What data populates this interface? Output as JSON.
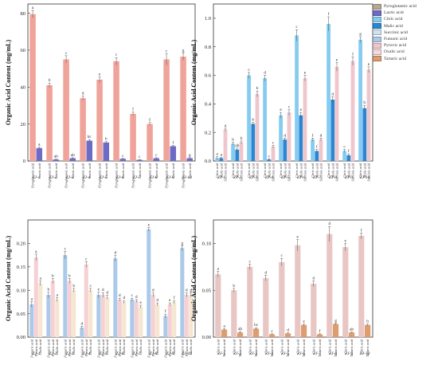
{
  "legend": [
    {
      "name": "Pyroglutamic acid",
      "color": "#b7a993"
    },
    {
      "name": "Lactic acid",
      "color": "#6d6bc6"
    },
    {
      "name": "Citric acid",
      "color": "#85ccf0"
    },
    {
      "name": "Malic acid",
      "color": "#2a86d2"
    },
    {
      "name": "Succinic acid",
      "color": "#cfe3ee"
    },
    {
      "name": "Fumaric acid",
      "color": "#abc9e8"
    },
    {
      "name": "Pyruvic acid",
      "color": "#efc6cc"
    },
    {
      "name": "Oxalic acid",
      "color": "#f6d8de"
    },
    {
      "name": "Tartaric acid",
      "color": "#dd9d6e"
    }
  ],
  "chart_data": [
    {
      "type": "bar",
      "ylabel": "Organic Acid Content (mg/mL)",
      "ylim": [
        0,
        85
      ],
      "yticks": [
        0,
        20,
        40,
        60,
        80
      ],
      "groups": [
        "ZJ-1",
        "ZJ-2",
        "ZJ-3",
        "ZJ-4",
        "ZJ-5",
        "ZJ-6",
        "ZJ-7",
        "ZJ-8",
        "ZJ-9",
        "ZJ-10"
      ],
      "bar_labels": [
        "Pyroglutamic acid",
        "Lactic acid"
      ],
      "series": [
        {
          "name": "Pyroglutamic acid",
          "color": "#f0a39a",
          "values": [
            79.5,
            41,
            55,
            34,
            44,
            54,
            25.5,
            20,
            55,
            56.5
          ],
          "errors": [
            2,
            1.2,
            2,
            1.2,
            1.5,
            2,
            1,
            0.8,
            3,
            2
          ],
          "letters": [
            "a",
            "b",
            "c",
            "d",
            "e",
            "c",
            "f",
            "f",
            "c",
            "g"
          ]
        },
        {
          "name": "Lactic acid",
          "color": "#6d6bc6",
          "values": [
            7,
            0.8,
            1.5,
            11,
            10,
            1.2,
            0.6,
            1.5,
            8,
            1.5
          ],
          "errors": [
            0.5,
            0.2,
            0.3,
            0.6,
            0.5,
            0.2,
            0.2,
            0.3,
            0.5,
            0.3
          ],
          "letters": [
            "a",
            "ab",
            "ab",
            "bc",
            "b",
            "c",
            "c",
            "c",
            "f",
            "g"
          ]
        }
      ]
    },
    {
      "type": "bar",
      "ylabel": "Organic Acid Content (mg/mL)",
      "ylim": [
        0,
        1.1
      ],
      "yticks": [
        0,
        0.2,
        0.4,
        0.6,
        0.8,
        1.0
      ],
      "groups": [
        "ZJ-1",
        "ZJ-2",
        "ZJ-3",
        "ZJ-4",
        "ZJ-5",
        "ZJ-6",
        "ZJ-7",
        "ZJ-8",
        "ZJ-9",
        "ZJ-10"
      ],
      "bar_labels": [
        "Citric acid",
        "Malic acid",
        "Succinic acid"
      ],
      "series": [
        {
          "name": "Citric acid",
          "color": "#85ccf0",
          "values": [
            0.02,
            0.12,
            0.6,
            0.58,
            0.32,
            0.88,
            0.15,
            0.96,
            0.07,
            0.85
          ],
          "errors": [
            0.01,
            0.01,
            0.02,
            0.02,
            0.02,
            0.04,
            0.01,
            0.05,
            0.01,
            0.02
          ],
          "letters": [
            "a",
            "b",
            "c",
            "d",
            "e",
            "c",
            "f",
            "f",
            "c",
            "g"
          ]
        },
        {
          "name": "Malic acid",
          "color": "#2a86d2",
          "values": [
            0.02,
            0.08,
            0.26,
            0.01,
            0.15,
            0.32,
            0.07,
            0.43,
            0.04,
            0.37
          ],
          "errors": [
            0.005,
            0.01,
            0.01,
            0.005,
            0.01,
            0.02,
            0.01,
            0.02,
            0.01,
            0.02
          ],
          "letters": [
            "a",
            "ab",
            "b",
            "c",
            "d",
            "e",
            "f",
            "d",
            "f",
            "b"
          ]
        },
        {
          "name": "Succinic acid",
          "color": "#efc6cc",
          "values": [
            0.22,
            0.13,
            0.47,
            0.1,
            0.34,
            0.58,
            0.15,
            0.66,
            0.7,
            0.64
          ],
          "errors": [
            0.01,
            0.01,
            0.02,
            0.01,
            0.02,
            0.02,
            0.01,
            0.03,
            0.03,
            0.02
          ],
          "letters": [
            "a",
            "b",
            "b",
            "c",
            "c",
            "e",
            "d",
            "e",
            "f",
            "e"
          ]
        }
      ]
    },
    {
      "type": "bar",
      "ylabel": "Organic Acid Content (mg/mL)",
      "ylim": [
        0,
        0.25
      ],
      "yticks": [
        0,
        0.05,
        0.1,
        0.15,
        0.2
      ],
      "groups": [
        "ZJ-1",
        "ZJ-2",
        "ZJ-3",
        "ZJ-4",
        "ZJ-5",
        "ZJ-6",
        "ZJ-7",
        "ZJ-8",
        "ZJ-9",
        "ZJ-10"
      ],
      "bar_labels": [
        "Fumaric acid",
        "Pyruvic acid",
        "Oxalic acid"
      ],
      "series": [
        {
          "name": "Fumaric acid",
          "color": "#abc9e8",
          "values": [
            0.07,
            0.09,
            0.175,
            0.02,
            0.09,
            0.168,
            0.08,
            0.23,
            0.045,
            0.19
          ],
          "errors": [
            0.006,
            0.006,
            0.008,
            0.003,
            0.006,
            0.006,
            0.003,
            0.004,
            0.004,
            0.005
          ],
          "letters": [
            "a",
            "b",
            "c",
            "d",
            "e",
            "d",
            "c",
            "e",
            "f",
            "g"
          ]
        },
        {
          "name": "Pyruvic acid",
          "color": "#f6d0d4",
          "values": [
            0.17,
            0.12,
            0.12,
            0.155,
            0.09,
            0.08,
            0.077,
            0.09,
            0.07,
            0.09
          ],
          "errors": [
            0.007,
            0.005,
            0.005,
            0.006,
            0.005,
            0.003,
            0.003,
            0.004,
            0.003,
            0.004
          ],
          "letters": [
            "a",
            "b",
            "b",
            "c",
            "d",
            "d",
            "d",
            "d",
            "e",
            "d"
          ]
        },
        {
          "name": "Oxalic acid",
          "color": "#f5e6cf",
          "values": [
            0.115,
            0.08,
            0.1,
            0.1,
            0.085,
            0.075,
            0.065,
            0.07,
            0.075,
            0.09
          ],
          "errors": [
            0.005,
            0.004,
            0.004,
            0.004,
            0.004,
            0.003,
            0.003,
            0.003,
            0.003,
            0.004
          ],
          "letters": [
            "a",
            "a",
            "b",
            "c",
            "d",
            "d",
            "e",
            "d",
            "f",
            "g"
          ]
        }
      ]
    },
    {
      "type": "bar",
      "ylabel": "Organic Acid Content (mg/mL)",
      "ylim": [
        0,
        0.125
      ],
      "yticks": [
        0,
        0.05,
        0.1
      ],
      "groups": [
        "ZJ-1",
        "ZJ-2",
        "ZJ-3",
        "ZJ-4",
        "ZJ-5",
        "ZJ-6",
        "ZJ-7",
        "ZJ-8",
        "ZJ-9",
        "ZJ-10"
      ],
      "bar_labels": [
        "Citric acid",
        "Tartaric acid"
      ],
      "series": [
        {
          "name": "Citric acid",
          "color": "#e8c6c4",
          "values": [
            0.067,
            0.05,
            0.075,
            0.063,
            0.08,
            0.098,
            0.057,
            0.11,
            0.096,
            0.108
          ],
          "errors": [
            0.003,
            0.002,
            0.003,
            0.003,
            0.004,
            0.006,
            0.003,
            0.008,
            0.004,
            0.003
          ],
          "letters": [
            "a",
            "b",
            "c",
            "d",
            "c",
            "e",
            "d",
            "d",
            "e",
            "f"
          ]
        },
        {
          "name": "Tartaric acid",
          "color": "#dd9d6e",
          "values": [
            0.008,
            0.005,
            0.009,
            0.003,
            0.004,
            0.013,
            0.003,
            0.014,
            0.005,
            0.013
          ],
          "errors": [
            0.001,
            0.001,
            0.001,
            0.0005,
            0.0005,
            0.001,
            0.0005,
            0.001,
            0.0005,
            0.001
          ],
          "letters": [
            "a",
            "ab",
            "bc",
            "c",
            "d",
            "e",
            "f",
            "g",
            "ab",
            "b"
          ]
        }
      ]
    }
  ]
}
